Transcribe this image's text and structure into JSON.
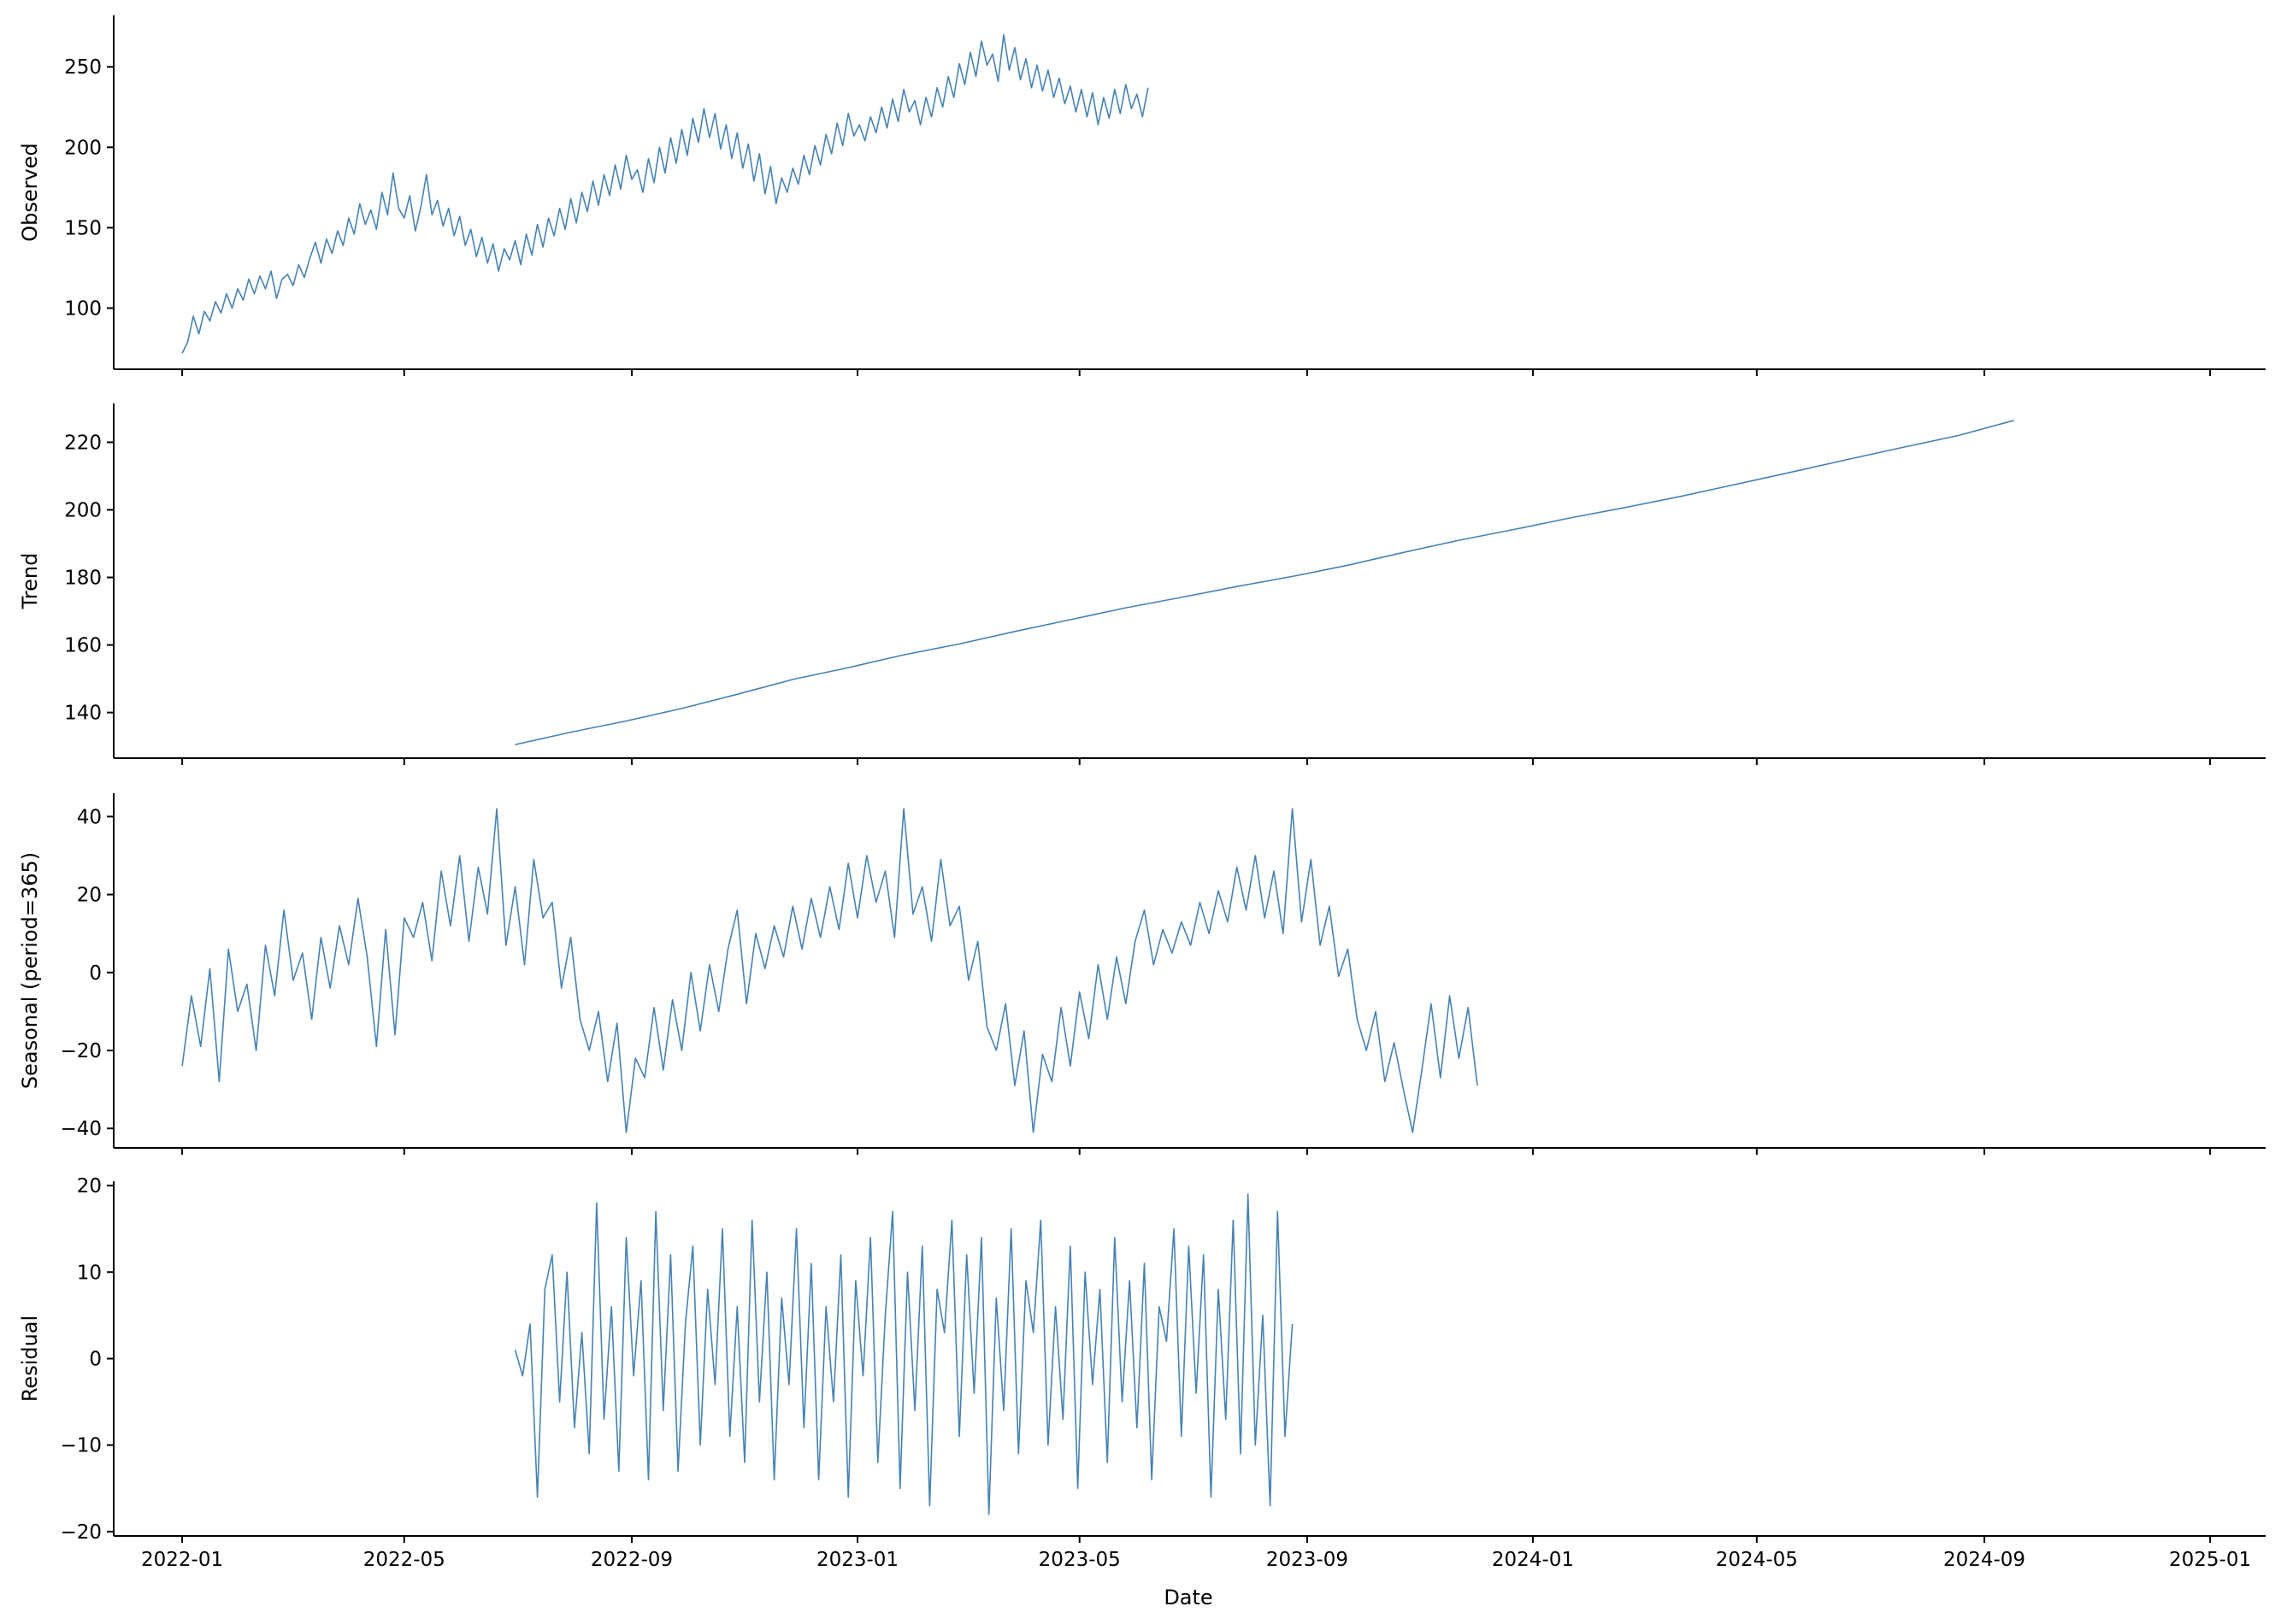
{
  "chart_data": {
    "type": "line",
    "line_color": "#4682b4",
    "grid": false,
    "legend": "none",
    "xlabel": "Date",
    "x_range": [
      "2021-11-25",
      "2025-01-31"
    ],
    "x_tick_labels": [
      "2022-01",
      "2022-05",
      "2022-09",
      "2023-01",
      "2023-05",
      "2023-09",
      "2024-01",
      "2024-05",
      "2024-09",
      "2025-01"
    ],
    "panels": [
      {
        "name": "observed",
        "ylabel": "Observed",
        "ylim": [
          62,
          282
        ],
        "y_ticks": [
          100,
          150,
          200,
          250
        ],
        "series": {
          "start_date": "2022-01-01",
          "step_days": 3,
          "y": [
            72,
            79,
            95,
            84,
            98,
            92,
            104,
            97,
            109,
            100,
            112,
            105,
            118,
            109,
            120,
            112,
            123,
            106,
            118,
            121,
            114,
            127,
            119,
            131,
            141,
            128,
            143,
            134,
            148,
            139,
            156,
            146,
            165,
            152,
            161,
            149,
            172,
            158,
            184,
            162,
            156,
            170,
            148,
            163,
            183,
            158,
            167,
            151,
            162,
            145,
            157,
            139,
            149,
            132,
            144,
            128,
            140,
            123,
            137,
            130,
            142,
            127,
            146,
            133,
            152,
            138,
            156,
            145,
            162,
            149,
            168,
            153,
            172,
            160,
            179,
            164,
            183,
            170,
            189,
            174,
            195,
            180,
            186,
            172,
            193,
            178,
            200,
            184,
            206,
            190,
            211,
            195,
            218,
            203,
            224,
            206,
            221,
            199,
            214,
            193,
            209,
            187,
            202,
            179,
            196,
            171,
            188,
            165,
            181,
            172,
            187,
            177,
            195,
            183,
            201,
            189,
            208,
            196,
            215,
            201,
            221,
            207,
            214,
            204,
            219,
            209,
            225,
            212,
            230,
            216,
            236,
            222,
            229,
            214,
            231,
            219,
            237,
            225,
            244,
            231,
            252,
            239,
            259,
            244,
            266,
            251,
            258,
            241,
            270,
            248,
            262,
            242,
            255,
            237,
            251,
            235,
            248,
            231,
            243,
            227,
            238,
            222,
            236,
            219,
            234,
            214,
            231,
            218,
            236,
            221,
            239,
            224,
            233,
            219,
            237
          ]
        }
      },
      {
        "name": "trend",
        "ylabel": "Trend",
        "ylim": [
          126.5,
          231.5
        ],
        "y_ticks": [
          140,
          160,
          180,
          200,
          220
        ],
        "series": {
          "start_date": "2022-06-30",
          "step_days": 30,
          "y": [
            130.5,
            134.2,
            137.5,
            141.2,
            145.4,
            149.8,
            153.3,
            157.1,
            160.3,
            164.0,
            167.5,
            171.0,
            174.1,
            177.3,
            180.3,
            183.6,
            187.4,
            191.0,
            194.2,
            197.6,
            200.7,
            204.0,
            207.6,
            211.2,
            214.9,
            218.5,
            222.0,
            226.5
          ]
        }
      },
      {
        "name": "seasonal",
        "ylabel": "Seasonal (period=365)",
        "ylim": [
          -45,
          46
        ],
        "y_ticks": [
          -40,
          -20,
          0,
          20,
          40
        ],
        "series": {
          "start_date": "2022-01-01",
          "step_days": 5,
          "y": [
            -24,
            -6,
            -19,
            1,
            -28,
            6,
            -10,
            -3,
            -20,
            7,
            -6,
            16,
            -2,
            5,
            -12,
            9,
            -4,
            12,
            2,
            19,
            4,
            -19,
            11,
            -16,
            14,
            9,
            18,
            3,
            26,
            12,
            30,
            8,
            27,
            15,
            42,
            7,
            22,
            2,
            29,
            14,
            18,
            -4,
            9,
            -12,
            -20,
            -10,
            -28,
            -13,
            -41,
            -22,
            -27,
            -9,
            -25,
            -7,
            -20,
            0,
            -15,
            2,
            -10,
            6,
            16,
            -8,
            10,
            1,
            12,
            4,
            17,
            6,
            19,
            9,
            22,
            11,
            28,
            14,
            30,
            18,
            26,
            9,
            42,
            15,
            22,
            8,
            29,
            12,
            17,
            -2,
            8,
            -14,
            -20,
            -8,
            -29,
            -15,
            -41,
            -21,
            -28,
            -9,
            -24,
            -5,
            -17,
            2,
            -12,
            4,
            -8,
            8,
            16,
            2,
            11,
            5,
            13,
            7,
            18,
            10,
            21,
            13,
            27,
            16,
            30,
            14,
            26,
            10,
            42,
            13,
            29,
            7,
            17,
            -1,
            6,
            -12,
            -20,
            -10,
            -28,
            -18,
            -30,
            -41,
            -25,
            -8,
            -27,
            -6,
            -22,
            -9,
            -29
          ]
        }
      },
      {
        "name": "residual",
        "ylabel": "Residual",
        "ylim": [
          -20.5,
          20.5
        ],
        "y_ticks": [
          -20,
          -10,
          0,
          10,
          20
        ],
        "series": {
          "start_date": "2022-06-30",
          "step_days": 4,
          "y": [
            1,
            -2,
            4,
            -16,
            8,
            12,
            -5,
            10,
            -8,
            3,
            -11,
            18,
            -7,
            6,
            -13,
            14,
            -2,
            9,
            -14,
            17,
            -6,
            12,
            -13,
            4,
            13,
            -10,
            8,
            -3,
            15,
            -9,
            6,
            -12,
            16,
            -5,
            10,
            -14,
            7,
            -3,
            15,
            -8,
            11,
            -14,
            6,
            -5,
            12,
            -16,
            9,
            -2,
            14,
            -12,
            5,
            17,
            -15,
            10,
            -6,
            13,
            -17,
            8,
            3,
            16,
            -9,
            12,
            -4,
            14,
            -18,
            7,
            -6,
            15,
            -11,
            9,
            3,
            16,
            -10,
            6,
            -7,
            13,
            -15,
            10,
            -3,
            8,
            -12,
            14,
            -5,
            9,
            -8,
            11,
            -14,
            6,
            2,
            15,
            -9,
            13,
            -4,
            12,
            -16,
            8,
            -7,
            16,
            -11,
            19,
            -10,
            5,
            -17,
            17,
            -9,
            4
          ]
        }
      }
    ]
  }
}
